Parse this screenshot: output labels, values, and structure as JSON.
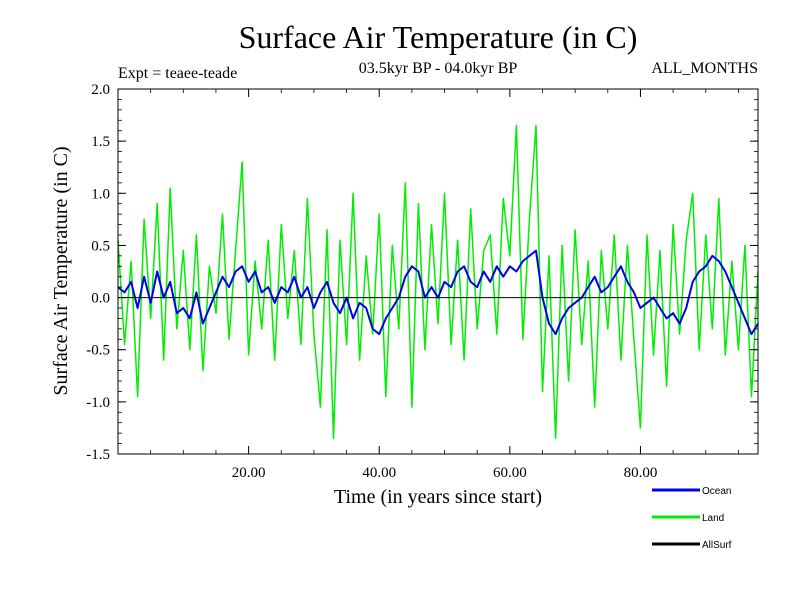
{
  "chart_data": {
    "type": "line",
    "title": "Surface Air Temperature (in C)",
    "subtitle": "03.5kyr BP - 04.0kyr BP",
    "left_label": "Expt = teaee-teade",
    "right_label": "ALL_MONTHS",
    "xlabel": "Time (in years since start)",
    "ylabel": "Surface Air Temperature (in C)",
    "xlim": [
      0,
      98
    ],
    "ylim": [
      -1.5,
      2.0
    ],
    "x_ticks": [
      20,
      40,
      60,
      80
    ],
    "x_tick_labels": [
      "20.00",
      "40.00",
      "60.00",
      "80.00"
    ],
    "y_ticks": [
      -1.5,
      -1.0,
      -0.5,
      0.0,
      0.5,
      1.0,
      1.5,
      2.0
    ],
    "y_tick_labels": [
      "-1.5",
      "-1.0",
      "-0.5",
      "0.0",
      "0.5",
      "1.0",
      "1.5",
      "2.0"
    ],
    "zero_line": 0.0,
    "series": [
      {
        "name": "Land",
        "color": "#00ee00",
        "x": [
          0,
          1,
          2,
          3,
          4,
          5,
          6,
          7,
          8,
          9,
          10,
          11,
          12,
          13,
          14,
          15,
          16,
          17,
          18,
          19,
          20,
          21,
          22,
          23,
          24,
          25,
          26,
          27,
          28,
          29,
          30,
          31,
          32,
          33,
          34,
          35,
          36,
          37,
          38,
          39,
          40,
          41,
          42,
          43,
          44,
          45,
          46,
          47,
          48,
          49,
          50,
          51,
          52,
          53,
          54,
          55,
          56,
          57,
          58,
          59,
          60,
          61,
          62,
          63,
          64,
          65,
          66,
          67,
          68,
          69,
          70,
          71,
          72,
          73,
          74,
          75,
          76,
          77,
          78,
          79,
          80,
          81,
          82,
          83,
          84,
          85,
          86,
          87,
          88,
          89,
          90,
          91,
          92,
          93,
          94,
          95,
          96,
          97,
          98
        ],
        "values": [
          0.55,
          -0.45,
          0.35,
          -0.95,
          0.75,
          -0.2,
          0.9,
          -0.6,
          1.05,
          -0.3,
          0.45,
          -0.5,
          0.6,
          -0.7,
          0.3,
          -0.15,
          0.8,
          -0.4,
          0.45,
          1.3,
          -0.55,
          0.35,
          -0.3,
          0.55,
          -0.6,
          0.7,
          -0.2,
          0.45,
          -0.45,
          0.95,
          -0.35,
          -1.05,
          0.65,
          -1.35,
          0.55,
          -0.45,
          1.0,
          -0.6,
          0.4,
          -0.35,
          0.8,
          -0.95,
          0.5,
          -0.3,
          1.1,
          -1.05,
          0.9,
          -0.5,
          0.7,
          -0.25,
          1.0,
          -0.45,
          0.55,
          -0.6,
          0.85,
          -0.3,
          0.45,
          0.6,
          -0.35,
          0.95,
          0.4,
          1.65,
          -0.4,
          0.75,
          1.65,
          -0.9,
          0.4,
          -1.35,
          0.5,
          -0.8,
          0.65,
          -0.45,
          0.35,
          -1.05,
          0.45,
          -0.3,
          0.6,
          -0.6,
          0.5,
          -0.4,
          -1.25,
          0.6,
          -0.55,
          0.45,
          -0.85,
          0.7,
          -0.35,
          0.55,
          1.0,
          -0.5,
          0.6,
          -0.3,
          0.95,
          -0.55,
          0.35,
          -0.5,
          0.5,
          -0.95,
          0.25
        ]
      },
      {
        "name": "Ocean",
        "color": "#0000ee",
        "x": [
          0,
          1,
          2,
          3,
          4,
          5,
          6,
          7,
          8,
          9,
          10,
          11,
          12,
          13,
          14,
          15,
          16,
          17,
          18,
          19,
          20,
          21,
          22,
          23,
          24,
          25,
          26,
          27,
          28,
          29,
          30,
          31,
          32,
          33,
          34,
          35,
          36,
          37,
          38,
          39,
          40,
          41,
          42,
          43,
          44,
          45,
          46,
          47,
          48,
          49,
          50,
          51,
          52,
          53,
          54,
          55,
          56,
          57,
          58,
          59,
          60,
          61,
          62,
          63,
          64,
          65,
          66,
          67,
          68,
          69,
          70,
          71,
          72,
          73,
          74,
          75,
          76,
          77,
          78,
          79,
          80,
          81,
          82,
          83,
          84,
          85,
          86,
          87,
          88,
          89,
          90,
          91,
          92,
          93,
          94,
          95,
          96,
          97,
          98
        ],
        "values": [
          0.1,
          0.05,
          0.15,
          -0.1,
          0.2,
          -0.05,
          0.25,
          0.0,
          0.15,
          -0.15,
          -0.1,
          -0.2,
          0.05,
          -0.25,
          -0.1,
          0.05,
          0.2,
          0.1,
          0.25,
          0.3,
          0.15,
          0.25,
          0.05,
          0.1,
          -0.05,
          0.1,
          0.05,
          0.2,
          0.0,
          0.1,
          -0.1,
          0.05,
          0.15,
          -0.05,
          -0.15,
          0.0,
          -0.2,
          -0.05,
          -0.1,
          -0.3,
          -0.35,
          -0.2,
          -0.1,
          0.0,
          0.2,
          0.3,
          0.25,
          0.0,
          0.1,
          0.0,
          0.15,
          0.1,
          0.25,
          0.3,
          0.15,
          0.1,
          0.25,
          0.15,
          0.3,
          0.2,
          0.3,
          0.25,
          0.35,
          0.4,
          0.45,
          0.0,
          -0.25,
          -0.35,
          -0.2,
          -0.1,
          -0.05,
          0.0,
          0.1,
          0.2,
          0.05,
          0.1,
          0.2,
          0.3,
          0.15,
          0.05,
          -0.1,
          -0.05,
          0.0,
          -0.1,
          -0.2,
          -0.15,
          -0.25,
          -0.1,
          0.15,
          0.25,
          0.3,
          0.4,
          0.35,
          0.25,
          0.1,
          -0.05,
          -0.2,
          -0.35,
          -0.25
        ]
      },
      {
        "name": "AllSurf",
        "color": "#000000",
        "x": [],
        "values": []
      }
    ],
    "legend_position": "bottom-right"
  }
}
